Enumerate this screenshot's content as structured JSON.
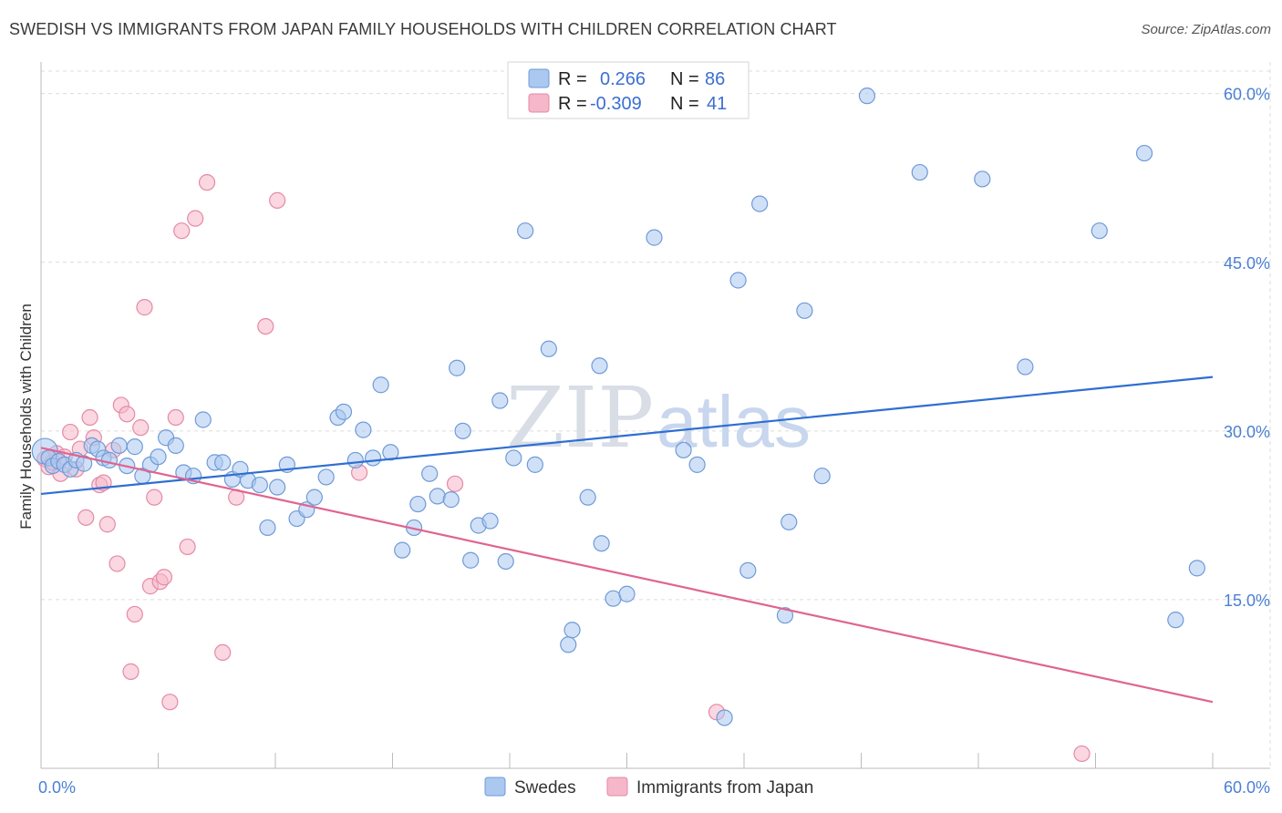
{
  "header": {
    "title": "SWEDISH VS IMMIGRANTS FROM JAPAN FAMILY HOUSEHOLDS WITH CHILDREN CORRELATION CHART",
    "source": "Source: ZipAtlas.com"
  },
  "watermark": {
    "zip": "ZIP",
    "atlas": "atlas"
  },
  "colors": {
    "swedes_fill": "#aac8f0",
    "swedes_stroke": "#6f9ad8",
    "swedes_line": "#2f6fd1",
    "japan_fill": "#f5b7c9",
    "japan_stroke": "#e58aa6",
    "japan_line": "#e0648f",
    "grid": "#dcdcdc",
    "tick_text": "#4a7fd4"
  },
  "legend": {
    "rows": [
      {
        "r_label": "R =",
        "r_value": "0.266",
        "n_label": "N =",
        "n_value": "86"
      },
      {
        "r_label": "R =",
        "r_value": "-0.309",
        "n_label": "N =",
        "n_value": "41"
      }
    ]
  },
  "chart_data": {
    "type": "scatter",
    "title": "SWEDISH VS IMMIGRANTS FROM JAPAN FAMILY HOUSEHOLDS WITH CHILDREN CORRELATION CHART",
    "xlabel": "",
    "ylabel": "Family Households with Children",
    "xlim": [
      0,
      60
    ],
    "ylim": [
      0,
      62
    ],
    "x_tick_labels": [
      "0.0%",
      "60.0%"
    ],
    "y_ticks": [
      15,
      30,
      45,
      60
    ],
    "y_tick_labels": [
      "15.0%",
      "30.0%",
      "45.0%",
      "60.0%"
    ],
    "grid": true,
    "legend_position": "top-center",
    "series": [
      {
        "name": "Swedes",
        "r": 0.266,
        "n": 86,
        "trend": {
          "x": [
            0,
            60
          ],
          "y": [
            24.4,
            34.8
          ]
        },
        "points": [
          [
            0.2,
            28.2
          ],
          [
            0.4,
            27.6
          ],
          [
            0.6,
            26.9
          ],
          [
            0.9,
            27.3
          ],
          [
            1.2,
            27.0
          ],
          [
            1.5,
            26.6
          ],
          [
            1.8,
            27.4
          ],
          [
            2.2,
            27.1
          ],
          [
            2.6,
            28.7
          ],
          [
            2.9,
            28.4
          ],
          [
            3.2,
            27.6
          ],
          [
            3.5,
            27.4
          ],
          [
            4.0,
            28.7
          ],
          [
            4.4,
            26.9
          ],
          [
            4.8,
            28.6
          ],
          [
            5.2,
            26.0
          ],
          [
            5.6,
            27.0
          ],
          [
            6.0,
            27.7
          ],
          [
            6.4,
            29.4
          ],
          [
            6.9,
            28.7
          ],
          [
            7.3,
            26.3
          ],
          [
            7.8,
            26.0
          ],
          [
            8.3,
            31.0
          ],
          [
            8.9,
            27.2
          ],
          [
            9.3,
            27.2
          ],
          [
            9.8,
            25.7
          ],
          [
            10.2,
            26.6
          ],
          [
            10.6,
            25.6
          ],
          [
            11.2,
            25.2
          ],
          [
            11.6,
            21.4
          ],
          [
            12.1,
            25.0
          ],
          [
            12.6,
            27.0
          ],
          [
            13.1,
            22.2
          ],
          [
            13.6,
            23.0
          ],
          [
            14.0,
            24.1
          ],
          [
            14.6,
            25.9
          ],
          [
            15.2,
            31.2
          ],
          [
            15.5,
            31.7
          ],
          [
            16.1,
            27.4
          ],
          [
            16.5,
            30.1
          ],
          [
            17.0,
            27.6
          ],
          [
            17.4,
            34.1
          ],
          [
            17.9,
            28.1
          ],
          [
            18.5,
            19.4
          ],
          [
            19.1,
            21.4
          ],
          [
            19.3,
            23.5
          ],
          [
            19.9,
            26.2
          ],
          [
            20.3,
            24.2
          ],
          [
            21.0,
            23.9
          ],
          [
            21.3,
            35.6
          ],
          [
            21.6,
            30.0
          ],
          [
            22.0,
            18.5
          ],
          [
            22.4,
            21.6
          ],
          [
            23.0,
            22.0
          ],
          [
            23.5,
            32.7
          ],
          [
            23.8,
            18.4
          ],
          [
            24.2,
            27.6
          ],
          [
            24.8,
            47.8
          ],
          [
            25.3,
            27.0
          ],
          [
            26.0,
            37.3
          ],
          [
            27.0,
            11.0
          ],
          [
            27.2,
            12.3
          ],
          [
            28.0,
            24.1
          ],
          [
            28.7,
            20.0
          ],
          [
            28.6,
            35.8
          ],
          [
            29.3,
            15.1
          ],
          [
            30.0,
            15.5
          ],
          [
            31.4,
            47.2
          ],
          [
            32.9,
            28.3
          ],
          [
            33.6,
            27.0
          ],
          [
            35.0,
            4.5
          ],
          [
            35.7,
            43.4
          ],
          [
            36.2,
            17.6
          ],
          [
            36.8,
            50.2
          ],
          [
            38.1,
            13.6
          ],
          [
            38.3,
            21.9
          ],
          [
            39.1,
            40.7
          ],
          [
            40.0,
            26.0
          ],
          [
            42.3,
            59.8
          ],
          [
            45.0,
            53.0
          ],
          [
            48.2,
            52.4
          ],
          [
            50.4,
            35.7
          ],
          [
            54.2,
            47.8
          ],
          [
            56.5,
            54.7
          ],
          [
            58.1,
            13.2
          ],
          [
            59.2,
            17.8
          ]
        ]
      },
      {
        "name": "Immigrants from Japan",
        "r": -0.309,
        "n": 41,
        "trend": {
          "x": [
            0,
            60
          ],
          "y": [
            28.5,
            5.9
          ]
        },
        "points": [
          [
            0.2,
            27.5
          ],
          [
            0.4,
            26.8
          ],
          [
            0.6,
            27.2
          ],
          [
            0.8,
            28.0
          ],
          [
            1.0,
            26.2
          ],
          [
            1.2,
            27.7
          ],
          [
            1.5,
            29.9
          ],
          [
            1.8,
            26.6
          ],
          [
            2.0,
            28.4
          ],
          [
            2.3,
            22.3
          ],
          [
            2.5,
            31.2
          ],
          [
            2.7,
            29.4
          ],
          [
            3.0,
            25.2
          ],
          [
            3.2,
            25.4
          ],
          [
            3.4,
            21.7
          ],
          [
            3.7,
            28.3
          ],
          [
            3.9,
            18.2
          ],
          [
            4.1,
            32.3
          ],
          [
            4.4,
            31.5
          ],
          [
            4.6,
            8.6
          ],
          [
            4.8,
            13.7
          ],
          [
            5.1,
            30.3
          ],
          [
            5.3,
            41.0
          ],
          [
            5.6,
            16.2
          ],
          [
            5.8,
            24.1
          ],
          [
            6.1,
            16.6
          ],
          [
            6.3,
            17.0
          ],
          [
            6.6,
            5.9
          ],
          [
            6.9,
            31.2
          ],
          [
            7.2,
            47.8
          ],
          [
            7.5,
            19.7
          ],
          [
            7.9,
            48.9
          ],
          [
            8.5,
            52.1
          ],
          [
            9.3,
            10.3
          ],
          [
            10.0,
            24.1
          ],
          [
            11.5,
            39.3
          ],
          [
            12.1,
            50.5
          ],
          [
            16.3,
            26.3
          ],
          [
            21.2,
            25.3
          ],
          [
            34.6,
            5.0
          ],
          [
            53.3,
            1.3
          ]
        ]
      }
    ]
  },
  "bottom_legend": {
    "items": [
      {
        "label": "Swedes"
      },
      {
        "label": "Immigrants from Japan"
      }
    ]
  }
}
